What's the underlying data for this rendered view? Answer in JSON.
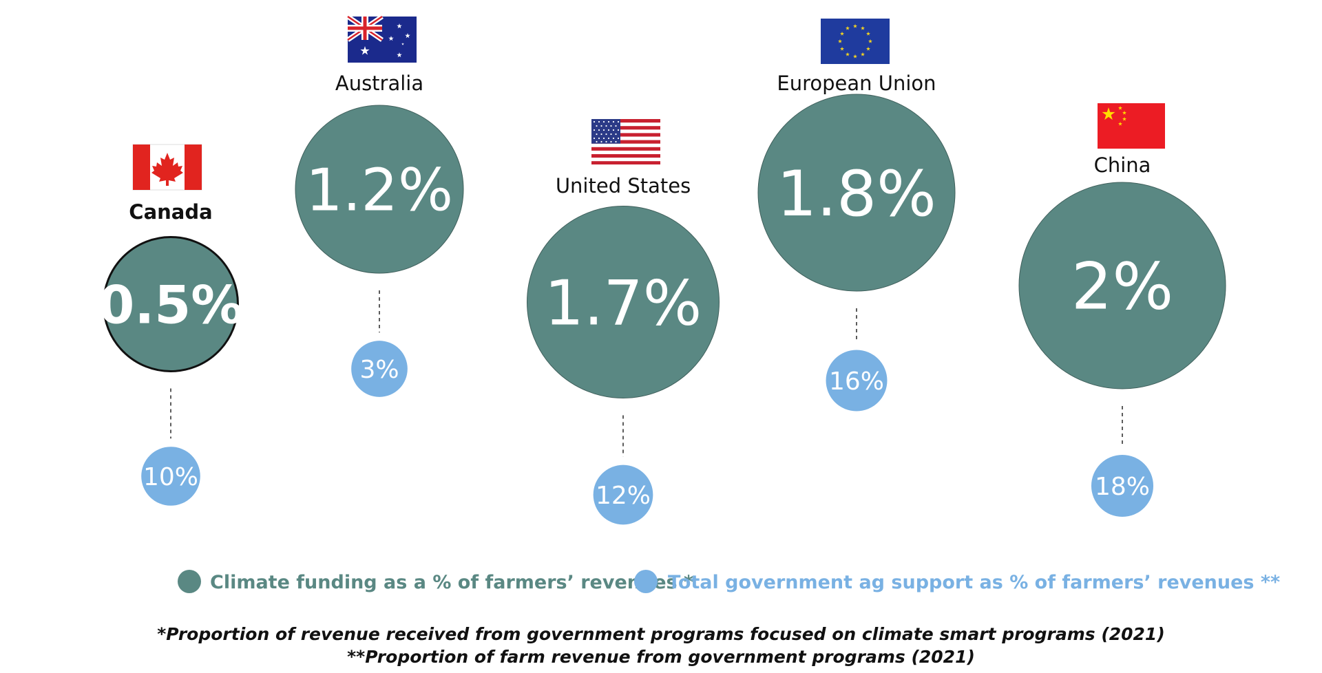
{
  "chart_data": {
    "type": "bubble",
    "countries": [
      {
        "name": "Canada",
        "flag": "canada-flag",
        "climate_funding_pct": 0.5,
        "climate_label": "0.5%",
        "gov_support_pct": 10,
        "gov_label": "10%"
      },
      {
        "name": "Australia",
        "flag": "australia-flag",
        "climate_funding_pct": 1.2,
        "climate_label": "1.2%",
        "gov_support_pct": 3,
        "gov_label": "3%"
      },
      {
        "name": "United States",
        "flag": "usa-flag",
        "climate_funding_pct": 1.7,
        "climate_label": "1.7%",
        "gov_support_pct": 12,
        "gov_label": "12%"
      },
      {
        "name": "European Union",
        "flag": "eu-flag",
        "climate_funding_pct": 1.8,
        "climate_label": "1.8%",
        "gov_support_pct": 16,
        "gov_label": "16%"
      },
      {
        "name": "China",
        "flag": "china-flag",
        "climate_funding_pct": 2,
        "climate_label": "2%",
        "gov_support_pct": 18,
        "gov_label": "18%"
      }
    ],
    "series": [
      {
        "name": "Climate funding as a % of farmers’ revenues *",
        "color": "#5a8883"
      },
      {
        "name": "Total government ag support as % of farmers’ revenues **",
        "color": "#79b1e3"
      }
    ],
    "footnotes": [
      "*Proportion of revenue received from government programs focused on climate smart programs (2021)",
      "**Proportion of farm revenue from government programs (2021)"
    ]
  },
  "colors": {
    "climate": "#5a8883",
    "support": "#79b1e3",
    "background": "#ffffff"
  }
}
